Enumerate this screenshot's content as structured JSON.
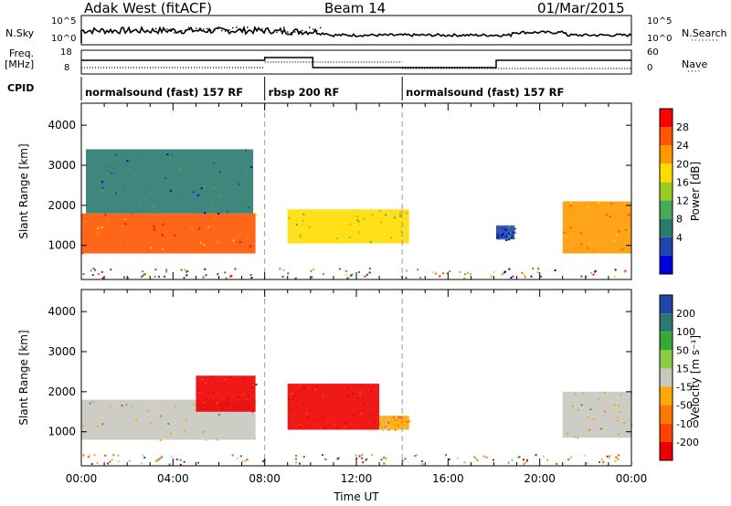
{
  "header": {
    "station": "Adak West (fitACF)",
    "beam": "Beam 14",
    "date": "01/Mar/2015"
  },
  "top_panels": {
    "nsky_label": "N.Sky",
    "nsky_ticks": [
      "10^5",
      "10^0"
    ],
    "nsearch_label": "N.Search",
    "freq_label": "Freq.",
    "freq_unit": "[MHz]",
    "freq_ticks": [
      "18",
      "8"
    ],
    "nave_ticks": [
      "60",
      "0"
    ],
    "nave_label": "Nave",
    "cpid_label": "CPID"
  },
  "modes": [
    {
      "label": "normalsound (fast) 157 RF",
      "start_h": 0,
      "end_h": 8
    },
    {
      "label": "rbsp 200 RF",
      "start_h": 8,
      "end_h": 14
    },
    {
      "label": "normalsound (fast) 157 RF",
      "start_h": 14,
      "end_h": 24
    }
  ],
  "chart_data": [
    {
      "type": "heatmap",
      "name": "power",
      "ylabel": "Slant Range [km]",
      "xlabel": "",
      "xlim": [
        0,
        24
      ],
      "ylim": [
        150,
        4550
      ],
      "yticks": [
        "1000",
        "2000",
        "3000",
        "4000"
      ],
      "colorbar": {
        "label": "Power [dB]",
        "ticks": [
          "28",
          "24",
          "20",
          "16",
          "12",
          "8",
          "4"
        ],
        "colors": [
          "#0000dd",
          "#2244aa",
          "#2a7a6e",
          "#44aa55",
          "#99cc22",
          "#ffdd00",
          "#ff9900",
          "#ff5500",
          "#ff0000"
        ]
      },
      "regions": [
        {
          "t0": 0.0,
          "t1": 7.6,
          "r0": 800,
          "r1": 1800,
          "value": 26
        },
        {
          "t0": 0.2,
          "t1": 7.5,
          "r0": 1800,
          "r1": 3400,
          "value": 8
        },
        {
          "t0": 9.0,
          "t1": 14.3,
          "r0": 1050,
          "r1": 1900,
          "value": 18
        },
        {
          "t0": 18.1,
          "t1": 18.9,
          "r0": 1150,
          "r1": 1500,
          "value": 6
        },
        {
          "t0": 21.0,
          "t1": 24.0,
          "r0": 800,
          "r1": 2100,
          "value": 22
        }
      ]
    },
    {
      "type": "heatmap",
      "name": "velocity",
      "ylabel": "Slant Range [km]",
      "xlabel": "Time UT",
      "xlim": [
        0,
        24
      ],
      "ylim": [
        150,
        4550
      ],
      "xticks": [
        "00:00",
        "04:00",
        "08:00",
        "12:00",
        "16:00",
        "20:00",
        "00:00"
      ],
      "yticks": [
        "1000",
        "2000",
        "3000",
        "4000"
      ],
      "colorbar": {
        "label": "Velocity [m s⁻¹]",
        "ticks": [
          "200",
          "100",
          "50",
          "15",
          "-15",
          "-50",
          "-100",
          "-200"
        ],
        "colors": [
          "#2244aa",
          "#2a7a6e",
          "#33aa33",
          "#88cc44",
          "#c8c8c0",
          "#ffaa00",
          "#ff7700",
          "#ff4400",
          "#ee0000"
        ]
      },
      "regions": [
        {
          "t0": 0.0,
          "t1": 7.6,
          "r0": 800,
          "r1": 1800,
          "value": 0
        },
        {
          "t0": 5.0,
          "t1": 7.6,
          "r0": 1500,
          "r1": 2400,
          "value": -200
        },
        {
          "t0": 9.0,
          "t1": 13.0,
          "r0": 1050,
          "r1": 2200,
          "value": -200
        },
        {
          "t0": 13.0,
          "t1": 14.3,
          "r0": 1050,
          "r1": 1400,
          "value": -50
        },
        {
          "t0": 21.0,
          "t1": 24.0,
          "r0": 850,
          "r1": 2000,
          "value": 0
        }
      ]
    }
  ]
}
